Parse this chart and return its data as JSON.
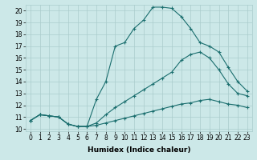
{
  "xlabel": "Humidex (Indice chaleur)",
  "bg_color": "#cce8e8",
  "grid_color": "#aacccc",
  "line_color": "#1a6e6e",
  "xlim": [
    -0.5,
    23.5
  ],
  "ylim": [
    9.8,
    20.5
  ],
  "yticks": [
    10,
    11,
    12,
    13,
    14,
    15,
    16,
    17,
    18,
    19,
    20
  ],
  "xticks": [
    0,
    1,
    2,
    3,
    4,
    5,
    6,
    7,
    8,
    9,
    10,
    11,
    12,
    13,
    14,
    15,
    16,
    17,
    18,
    19,
    20,
    21,
    22,
    23
  ],
  "line1_y": [
    10.7,
    11.2,
    11.1,
    11.0,
    10.4,
    10.2,
    10.2,
    12.5,
    14.0,
    17.0,
    17.3,
    18.5,
    19.2,
    20.3,
    20.3,
    20.2,
    19.5,
    18.5,
    17.3,
    17.0,
    16.5,
    15.2,
    14.0,
    13.2
  ],
  "line2_y": [
    10.7,
    11.2,
    11.1,
    11.0,
    10.4,
    10.2,
    10.2,
    10.5,
    11.2,
    11.8,
    12.3,
    12.8,
    13.3,
    13.8,
    14.3,
    14.8,
    15.8,
    16.3,
    16.5,
    16.0,
    15.0,
    13.8,
    13.0,
    12.8
  ],
  "line3_y": [
    10.7,
    11.2,
    11.1,
    11.0,
    10.4,
    10.2,
    10.2,
    10.3,
    10.5,
    10.7,
    10.9,
    11.1,
    11.3,
    11.5,
    11.7,
    11.9,
    12.1,
    12.2,
    12.4,
    12.5,
    12.3,
    12.1,
    12.0,
    11.8
  ],
  "marker": "+",
  "markersize": 3,
  "markeredgewidth": 0.8,
  "linewidth": 0.8,
  "label_fontsize": 6.5,
  "tick_fontsize": 5.5
}
